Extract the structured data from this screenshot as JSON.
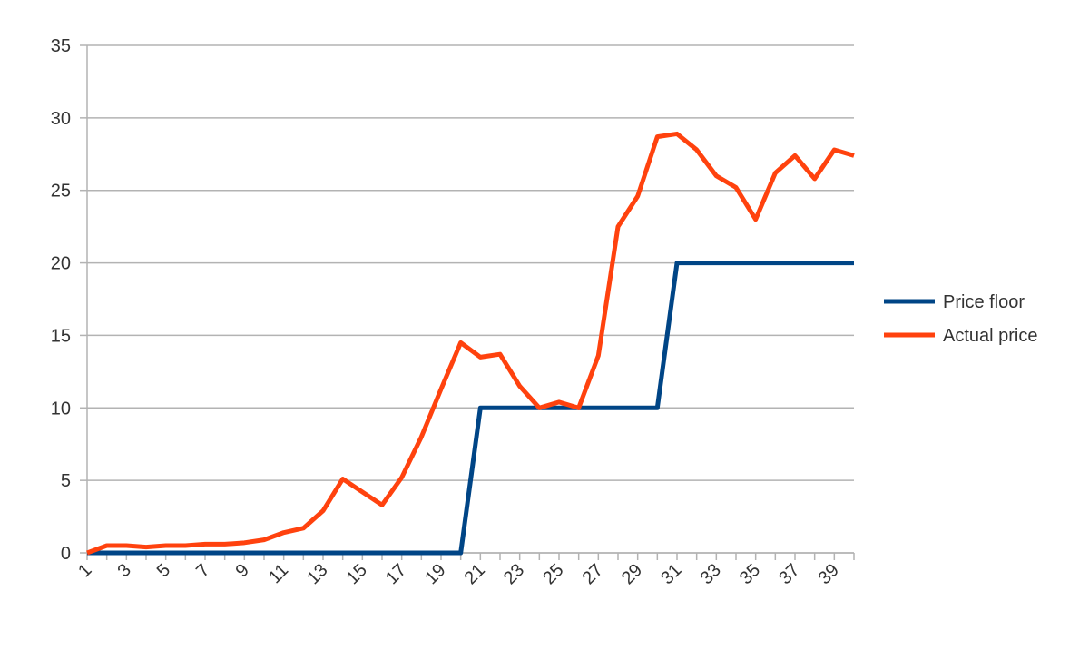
{
  "chart_data": {
    "type": "line",
    "categories": [
      "1",
      null,
      "3",
      null,
      "5",
      null,
      "7",
      null,
      "9",
      null,
      "11",
      null,
      "13",
      null,
      "15",
      null,
      "17",
      null,
      "19",
      null,
      "21",
      null,
      "23",
      null,
      "25",
      null,
      "27",
      null,
      "29",
      null,
      "31",
      null,
      "33",
      null,
      "35",
      null,
      "37",
      null,
      "39",
      null
    ],
    "series": [
      {
        "name": "Price floor",
        "color": "#004586",
        "values": [
          0,
          0,
          0,
          0,
          0,
          0,
          0,
          0,
          0,
          0,
          0,
          0,
          0,
          0,
          0,
          0,
          0,
          0,
          0,
          0,
          10,
          10,
          10,
          10,
          10,
          10,
          10,
          10,
          10,
          10,
          20,
          20,
          20,
          20,
          20,
          20,
          20,
          20,
          20,
          20
        ]
      },
      {
        "name": "Actual price",
        "color": "#ff420e",
        "values": [
          0,
          0.5,
          0.5,
          0.4,
          0.5,
          0.5,
          0.6,
          0.6,
          0.7,
          0.9,
          1.4,
          1.7,
          2.9,
          5.1,
          4.2,
          3.3,
          5.2,
          8.0,
          11.3,
          14.5,
          13.5,
          13.7,
          11.5,
          10.0,
          10.4,
          10.0,
          13.6,
          22.5,
          24.6,
          28.7,
          28.9,
          27.8,
          26.0,
          25.2,
          23.0,
          26.2,
          27.4,
          25.8,
          27.8,
          27.4
        ]
      }
    ],
    "ylim": [
      0,
      35
    ],
    "yticks": [
      0,
      5,
      10,
      15,
      20,
      25,
      30,
      35
    ],
    "grid": true,
    "legend": "right"
  }
}
